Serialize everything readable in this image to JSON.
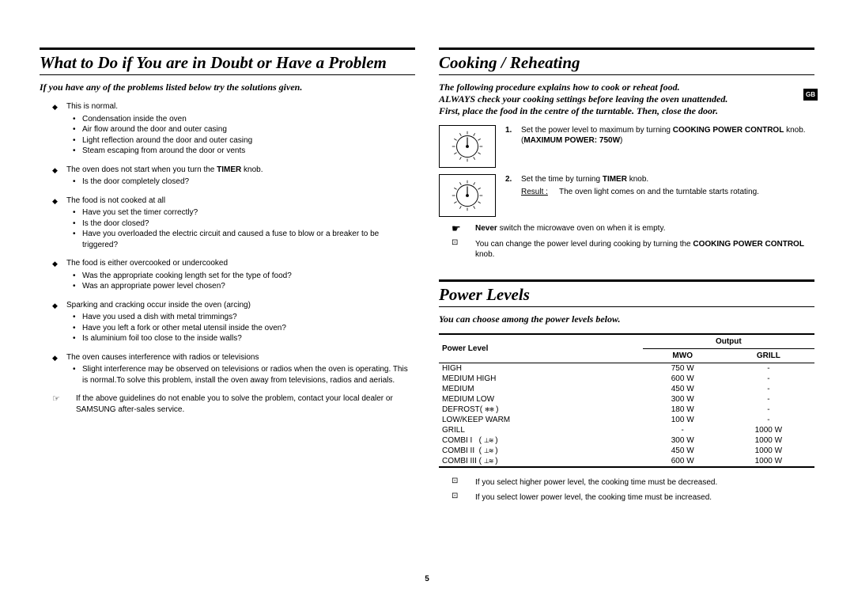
{
  "left": {
    "title": "What to Do if You are in Doubt or Have a Problem",
    "intro": "If you have any of the problems listed below try the solutions given.",
    "items": [
      {
        "lead": "This is normal.",
        "subs": [
          "Condensation inside the oven",
          "Air flow around the door and outer casing",
          "Light reflection around the door and outer casing",
          "Steam escaping from around the door or vents"
        ]
      },
      {
        "lead_html": "The oven does not start when you turn the <b>TIMER</b> knob.",
        "subs": [
          "Is the door completely closed?"
        ]
      },
      {
        "lead": "The food is not cooked at all",
        "subs": [
          "Have you set the timer correctly?",
          "Is the door closed?",
          "Have you overloaded the electric circuit and caused a fuse to blow or a breaker to be triggered?"
        ]
      },
      {
        "lead": "The food is either overcooked or undercooked",
        "subs": [
          "Was the appropriate cooking length set for the type of food?",
          "Was an appropriate power level chosen?"
        ]
      },
      {
        "lead": "Sparking and cracking occur inside the oven (arcing)",
        "subs": [
          "Have you used a dish with metal trimmings?",
          "Have you left a fork or other metal utensil inside the oven?",
          "Is aluminium foil too close to the inside walls?"
        ]
      },
      {
        "lead": "The oven causes interference with radios or televisions",
        "subs": [
          "Slight interference may be observed on televisions or radios when the oven is operating. This is normal.To solve this problem, install the oven away from televisions, radios and aerials."
        ]
      }
    ],
    "footnote": "If the above guidelines do not enable you to solve the problem, contact your local dealer or SAMSUNG after-sales service."
  },
  "right": {
    "cook_title": "Cooking / Reheating",
    "gb": "GB",
    "cook_intro_html": "The following procedure explains how to cook or reheat food.<br>ALWAYS check your cooking settings before leaving the oven unattended.<br>First, place the food in the centre of the turntable. Then, close the door.",
    "steps": [
      {
        "num": "1.",
        "body_html": "Set the power level to maximum by turning <b>COOKING POWER CONTROL</b> knob. (<b>MAXIMUM POWER: 750W</b>)"
      },
      {
        "num": "2.",
        "body_html": "Set the time by turning <b>TIMER</b> knob.",
        "result_label": "Result :",
        "result_text": "The oven light comes on and the turntable starts rotating."
      }
    ],
    "never_html": "<b>Never</b> switch the microwave oven on when it is empty.",
    "change_html": "You can change the power level during cooking by turning the <b>COOKING POWER CONTROL</b> knob.",
    "power_title": "Power Levels",
    "power_intro": "You can choose among the power levels below.",
    "table": {
      "h_level": "Power Level",
      "h_output": "Output",
      "h_mwo": "MWO",
      "h_grill": "GRILL",
      "rows": [
        {
          "l": "HIGH",
          "m": "750 W",
          "g": "-"
        },
        {
          "l": "MEDIUM HIGH",
          "m": "600 W",
          "g": "-"
        },
        {
          "l": "MEDIUM",
          "m": "450 W",
          "g": "-"
        },
        {
          "l": "MEDIUM LOW",
          "m": "300 W",
          "g": "-"
        },
        {
          "l_html": "DEFROST( <span class='symset'>❄❄</span> )",
          "m": "180 W",
          "g": "-"
        },
        {
          "l": "LOW/KEEP WARM",
          "m": "100 W",
          "g": "-"
        },
        {
          "l": "GRILL",
          "m": "-",
          "g": "1000 W"
        },
        {
          "l_html": "COMBI I &nbsp; ( <span class='symset'>⊥≋</span> )",
          "m": "300 W",
          "g": "1000 W"
        },
        {
          "l_html": "COMBI II &nbsp;( <span class='symset'>⊥≋</span> )",
          "m": "450 W",
          "g": "1000 W"
        },
        {
          "l_html": "COMBI III ( <span class='symset'>⊥≋</span> )",
          "m": "600 W",
          "g": "1000 W"
        }
      ]
    },
    "tip1": "If you select higher power level, the cooking time must be decreased.",
    "tip2": "If you select lower power level, the cooking time must be increased."
  },
  "page_number": "5"
}
